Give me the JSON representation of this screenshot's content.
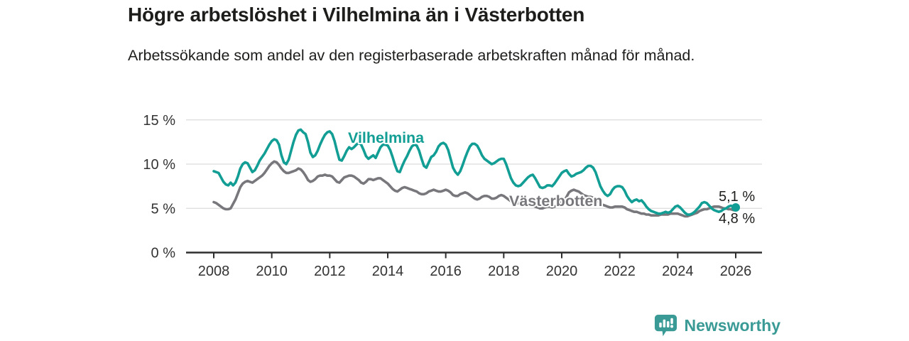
{
  "chart_data": {
    "type": "line",
    "title": "Högre arbetslöshet i Vilhelmina än i Västerbotten",
    "subtitle": "Arbetssökande som andel av den registerbaserade arbetskraften månad för månad.",
    "x_start_year": 2008,
    "x_step_months": 1,
    "x_ticks": [
      2008,
      2010,
      2012,
      2014,
      2016,
      2018,
      2020,
      2022,
      2024,
      2026
    ],
    "x_tick_labels": [
      "2008",
      "2010",
      "2012",
      "2014",
      "2016",
      "2018",
      "2020",
      "2022",
      "2024",
      "2026"
    ],
    "y_ticks": [
      0,
      5,
      10,
      15
    ],
    "y_tick_labels": [
      "0 %",
      "5 %",
      "10 %",
      "15 %"
    ],
    "ylim": [
      0,
      15.5
    ],
    "grid": true,
    "legend_position": "inline-labels",
    "series": [
      {
        "name": "Vilhelmina",
        "color": "#129e94",
        "values": [
          9.2,
          9.1,
          9.0,
          8.5,
          8.0,
          7.7,
          7.6,
          7.9,
          7.6,
          7.9,
          8.6,
          9.5,
          10.0,
          10.2,
          10.1,
          9.6,
          9.1,
          9.3,
          9.8,
          10.4,
          10.8,
          11.2,
          11.7,
          12.2,
          12.6,
          12.8,
          12.7,
          12.2,
          11.0,
          10.2,
          10.0,
          10.5,
          11.5,
          12.5,
          13.3,
          13.8,
          13.9,
          13.6,
          13.4,
          12.5,
          11.3,
          10.8,
          11.0,
          11.5,
          12.2,
          12.8,
          13.3,
          13.6,
          13.7,
          13.4,
          12.6,
          11.5,
          10.5,
          10.4,
          10.9,
          11.5,
          11.9,
          11.7,
          11.9,
          12.2,
          12.4,
          12.2,
          11.6,
          10.9,
          10.6,
          10.8,
          11.0,
          10.7,
          11.3,
          11.9,
          12.2,
          12.2,
          12.1,
          11.6,
          10.8,
          9.9,
          9.2,
          9.1,
          9.8,
          10.4,
          10.9,
          11.5,
          12.0,
          12.2,
          12.1,
          11.5,
          10.6,
          9.8,
          9.6,
          10.2,
          10.8,
          11.0,
          11.4,
          12.0,
          12.3,
          12.4,
          12.2,
          11.6,
          10.6,
          9.6,
          9.1,
          8.8,
          9.2,
          9.9,
          10.7,
          11.4,
          12.0,
          12.3,
          12.3,
          12.1,
          11.6,
          11.0,
          10.6,
          10.4,
          10.2,
          10.0,
          10.1,
          10.3,
          10.5,
          10.6,
          10.6,
          10.0,
          9.2,
          8.4,
          7.9,
          7.6,
          7.5,
          7.6,
          7.9,
          8.2,
          8.5,
          8.7,
          8.8,
          8.4,
          7.9,
          7.4,
          7.3,
          7.4,
          7.6,
          7.6,
          7.5,
          7.8,
          8.2,
          8.6,
          9.0,
          9.2,
          9.3,
          8.9,
          8.6,
          8.7,
          8.9,
          9.0,
          9.1,
          9.3,
          9.6,
          9.8,
          9.8,
          9.6,
          9.1,
          8.3,
          7.5,
          7.0,
          6.6,
          6.4,
          6.6,
          7.1,
          7.4,
          7.5,
          7.5,
          7.4,
          7.0,
          6.4,
          6.0,
          5.7,
          5.9,
          6.0,
          5.8,
          5.9,
          5.6,
          5.2,
          4.9,
          4.7,
          4.6,
          4.5,
          4.4,
          4.4,
          4.5,
          4.6,
          4.5,
          4.6,
          4.9,
          5.2,
          5.3,
          5.1,
          4.8,
          4.5,
          4.3,
          4.3,
          4.4,
          4.6,
          4.9,
          5.2,
          5.6,
          5.7,
          5.6,
          5.3,
          5.0,
          4.8,
          4.7,
          4.6,
          4.7,
          4.9,
          5.0,
          5.2,
          5.3,
          5.2,
          5.1
        ]
      },
      {
        "name": "Västerbotten",
        "color": "#78787c",
        "values": [
          5.7,
          5.6,
          5.4,
          5.2,
          5.0,
          4.9,
          4.9,
          5.0,
          5.5,
          6.0,
          6.7,
          7.4,
          7.8,
          8.0,
          8.1,
          8.0,
          7.9,
          8.1,
          8.3,
          8.5,
          8.7,
          9.0,
          9.4,
          9.8,
          10.1,
          10.3,
          10.2,
          9.9,
          9.5,
          9.2,
          9.0,
          9.0,
          9.1,
          9.2,
          9.3,
          9.5,
          9.4,
          9.1,
          8.7,
          8.2,
          8.0,
          8.1,
          8.3,
          8.6,
          8.7,
          8.7,
          8.8,
          8.7,
          8.7,
          8.6,
          8.3,
          8.0,
          7.9,
          8.2,
          8.5,
          8.6,
          8.7,
          8.7,
          8.6,
          8.4,
          8.2,
          7.9,
          7.8,
          8.0,
          8.3,
          8.3,
          8.2,
          8.3,
          8.4,
          8.4,
          8.2,
          8.0,
          7.8,
          7.5,
          7.2,
          7.0,
          6.9,
          7.1,
          7.3,
          7.4,
          7.3,
          7.2,
          7.1,
          7.0,
          6.9,
          6.7,
          6.6,
          6.6,
          6.7,
          6.9,
          7.0,
          7.1,
          7.0,
          6.9,
          6.9,
          7.0,
          7.1,
          7.0,
          6.8,
          6.5,
          6.4,
          6.4,
          6.6,
          6.7,
          6.8,
          6.7,
          6.5,
          6.3,
          6.1,
          6.0,
          6.1,
          6.3,
          6.4,
          6.4,
          6.3,
          6.1,
          6.1,
          6.2,
          6.4,
          6.5,
          6.4,
          6.2,
          6.0,
          5.8,
          5.6,
          5.5,
          5.6,
          5.7,
          5.7,
          5.6,
          5.5,
          5.4,
          5.3,
          5.2,
          5.1,
          5.0,
          5.0,
          5.1,
          5.2,
          5.2,
          5.1,
          5.2,
          5.3,
          5.5,
          5.7,
          5.9,
          6.3,
          6.8,
          7.0,
          7.1,
          7.0,
          6.9,
          6.7,
          6.5,
          6.4,
          6.3,
          6.3,
          6.2,
          6.0,
          5.8,
          5.6,
          5.4,
          5.3,
          5.2,
          5.1,
          5.1,
          5.2,
          5.2,
          5.2,
          5.2,
          5.1,
          4.9,
          4.8,
          4.7,
          4.6,
          4.6,
          4.5,
          4.4,
          4.4,
          4.3,
          4.3,
          4.2,
          4.2,
          4.2,
          4.2,
          4.3,
          4.3,
          4.3,
          4.3,
          4.4,
          4.4,
          4.4,
          4.4,
          4.3,
          4.2,
          4.1,
          4.1,
          4.2,
          4.3,
          4.4,
          4.5,
          4.7,
          4.8,
          4.9,
          4.9,
          5.0,
          5.1,
          5.2,
          5.2,
          5.2,
          5.1,
          5.0,
          5.0,
          4.9,
          4.9,
          4.8,
          4.8
        ]
      }
    ],
    "end_labels": {
      "vilhelmina": "5,1 %",
      "vasterbotten": "4,8 %"
    },
    "end_dot": {
      "series": "Vilhelmina",
      "value": 5.1
    }
  },
  "colors": {
    "grid": "#dcdcdc",
    "axis": "#2e2e2e",
    "tick_text": "#333333",
    "text_dark": "#1d1d1b",
    "brand_teal": "#3a9a95"
  },
  "branding": {
    "name": "Newsworthy"
  }
}
